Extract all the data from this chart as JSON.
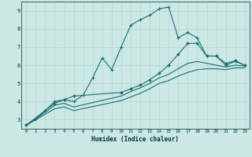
{
  "xlabel": "Humidex (Indice chaleur)",
  "bg_color": "#cce8e4",
  "line_color": "#1a7070",
  "grid_color": "#b8d8d4",
  "xlim": [
    -0.5,
    23.5
  ],
  "ylim": [
    2.5,
    9.5
  ],
  "xticks": [
    0,
    1,
    2,
    3,
    4,
    5,
    6,
    7,
    8,
    9,
    10,
    11,
    12,
    13,
    14,
    15,
    16,
    17,
    18,
    19,
    20,
    21,
    22,
    23
  ],
  "yticks": [
    3,
    4,
    5,
    6,
    7,
    8,
    9
  ],
  "series1_x": [
    0,
    1,
    2,
    3,
    4,
    5,
    6,
    7,
    8,
    9,
    10,
    11,
    12,
    13,
    14,
    15,
    16,
    17,
    18,
    19,
    20,
    21,
    22,
    23
  ],
  "series1_y": [
    2.7,
    3.0,
    3.5,
    4.0,
    4.1,
    4.0,
    4.35,
    5.3,
    6.4,
    5.75,
    7.0,
    8.2,
    8.5,
    8.75,
    9.1,
    9.2,
    7.5,
    7.8,
    7.5,
    6.5,
    6.5,
    6.0,
    6.2,
    6.0
  ],
  "series2_x": [
    0,
    2,
    3,
    4,
    5,
    10,
    11,
    12,
    13,
    14,
    15,
    16,
    17,
    18,
    19,
    20,
    21,
    22,
    23
  ],
  "series2_y": [
    2.7,
    3.5,
    3.9,
    4.1,
    4.3,
    4.5,
    4.7,
    4.9,
    5.2,
    5.55,
    6.0,
    6.6,
    7.2,
    7.2,
    6.5,
    6.5,
    6.1,
    6.25,
    6.0
  ],
  "series3_x": [
    0,
    2,
    3,
    4,
    5,
    10,
    11,
    12,
    13,
    14,
    15,
    16,
    17,
    18,
    19,
    20,
    21,
    22,
    23
  ],
  "series3_y": [
    2.7,
    3.4,
    3.8,
    3.9,
    3.7,
    4.3,
    4.55,
    4.75,
    5.0,
    5.3,
    5.5,
    5.8,
    6.1,
    6.2,
    6.1,
    6.0,
    5.9,
    6.0,
    5.95
  ],
  "series4_x": [
    0,
    2,
    3,
    4,
    5,
    10,
    11,
    12,
    13,
    14,
    15,
    16,
    17,
    18,
    19,
    20,
    21,
    22,
    23
  ],
  "series4_y": [
    2.7,
    3.3,
    3.6,
    3.7,
    3.5,
    4.05,
    4.25,
    4.45,
    4.7,
    5.0,
    5.15,
    5.4,
    5.6,
    5.75,
    5.8,
    5.8,
    5.75,
    5.85,
    5.85
  ]
}
